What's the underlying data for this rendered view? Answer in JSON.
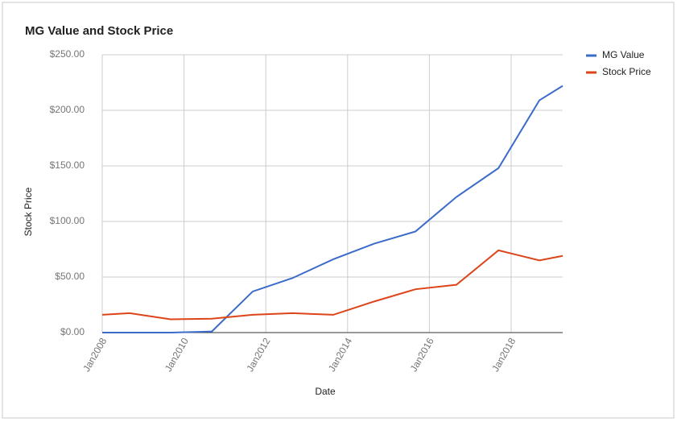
{
  "chart_data": {
    "type": "line",
    "title": "MG Value and Stock Price",
    "x_label": "Date",
    "y_label": "Stock Price",
    "x": [
      2008,
      2008.67,
      2009.67,
      2010.68,
      2011.68,
      2012.65,
      2013.65,
      2014.65,
      2015.66,
      2016.66,
      2017.69,
      2018.69,
      2019.26
    ],
    "series": [
      {
        "name": "MG Value",
        "color": "#3c6bc9",
        "values": [
          0,
          0,
          0,
          1,
          37,
          49,
          66,
          80,
          91,
          122,
          148,
          209,
          222
        ]
      },
      {
        "name": "Stock Price",
        "color": "#dd4419",
        "values": [
          16,
          17.5,
          12,
          12.5,
          16,
          17.5,
          16,
          28,
          39,
          43,
          74,
          65,
          69
        ]
      }
    ],
    "xlim": [
      2008,
      2019.26
    ],
    "xticks": [
      {
        "value": 2008,
        "label": "Jan2008"
      },
      {
        "value": 2010,
        "label": "Jan2010"
      },
      {
        "value": 2012,
        "label": "Jan2012"
      },
      {
        "value": 2014,
        "label": "Jan2014"
      },
      {
        "value": 2016,
        "label": "Jan2016"
      },
      {
        "value": 2018,
        "label": "Jan2018"
      }
    ],
    "ylim": [
      0,
      250
    ],
    "yticks": [
      {
        "value": 0,
        "label": "$0.00"
      },
      {
        "value": 50,
        "label": "$50.00"
      },
      {
        "value": 100,
        "label": "$100.00"
      },
      {
        "value": 150,
        "label": "$150.00"
      },
      {
        "value": 200,
        "label": "$200.00"
      },
      {
        "value": 250,
        "label": "$250.00"
      }
    ],
    "grid": true,
    "legend": "right"
  }
}
